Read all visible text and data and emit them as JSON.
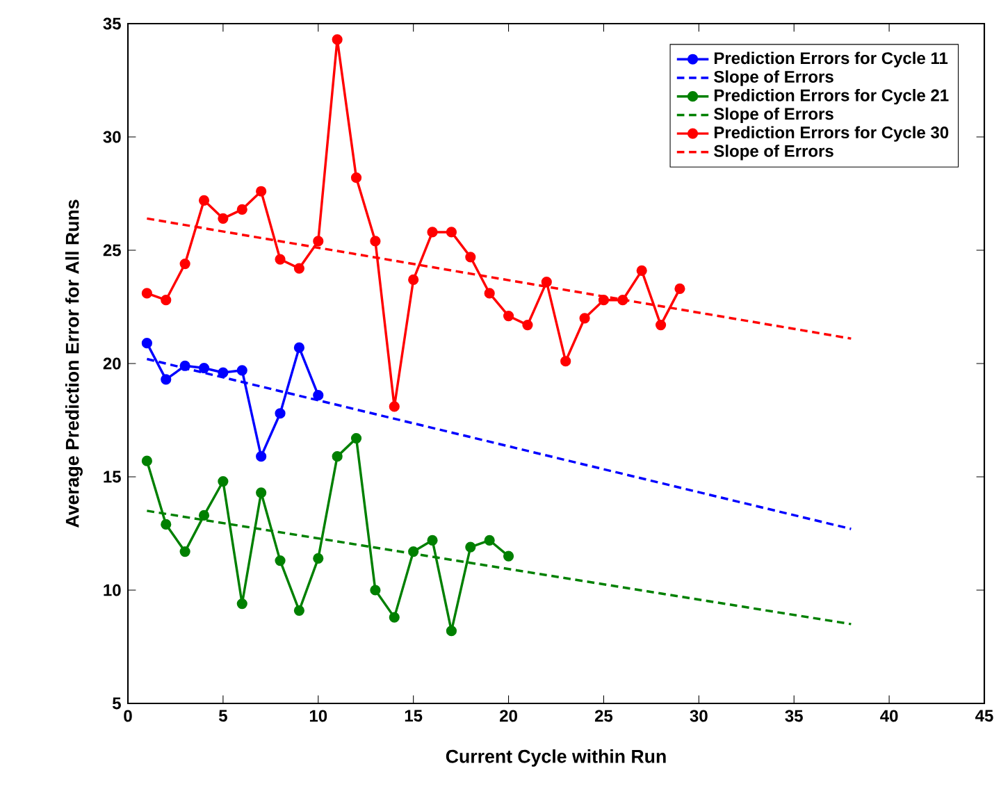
{
  "chart_data": {
    "type": "line",
    "xlabel": "Current Cycle within Run",
    "ylabel": "Average Prediction Error for All Runs",
    "xlim": [
      0,
      45
    ],
    "xticks": [
      0,
      5,
      10,
      15,
      20,
      25,
      30,
      35,
      40,
      45
    ],
    "ylim": [
      5,
      35
    ],
    "yticks": [
      5,
      10,
      15,
      20,
      25,
      30,
      35
    ],
    "grid": false,
    "legend": "top right",
    "series": [
      {
        "name": "Prediction Errors for Cycle 11",
        "color": "#0000ff",
        "marker": "circle",
        "line_style": "solid",
        "x": [
          1,
          2,
          3,
          4,
          5,
          6,
          7,
          8,
          9,
          10
        ],
        "values": [
          20.9,
          19.3,
          19.9,
          19.8,
          19.6,
          19.7,
          15.9,
          17.8,
          20.7,
          18.6
        ]
      },
      {
        "name": "Slope of Errors",
        "color": "#0000ff",
        "marker": "none",
        "line_style": "dashed",
        "x": [
          1,
          38
        ],
        "values": [
          20.2,
          12.7
        ]
      },
      {
        "name": "Prediction Errors for Cycle 21",
        "color": "#008000",
        "marker": "circle",
        "line_style": "solid",
        "x": [
          1,
          2,
          3,
          4,
          5,
          6,
          7,
          8,
          9,
          10,
          11,
          12,
          13,
          14,
          15,
          16,
          17,
          18,
          19,
          20
        ],
        "values": [
          15.7,
          12.9,
          11.7,
          13.3,
          14.8,
          9.4,
          14.3,
          11.3,
          9.1,
          11.4,
          15.9,
          16.7,
          10.0,
          8.8,
          11.7,
          12.2,
          8.2,
          11.9,
          12.2,
          11.5
        ]
      },
      {
        "name": "Slope of Errors",
        "color": "#008000",
        "marker": "none",
        "line_style": "dashed",
        "x": [
          1,
          38
        ],
        "values": [
          13.5,
          8.5
        ]
      },
      {
        "name": "Prediction Errors for Cycle 30",
        "color": "#ff0000",
        "marker": "circle",
        "line_style": "solid",
        "x": [
          1,
          2,
          3,
          4,
          5,
          6,
          7,
          8,
          9,
          10,
          11,
          12,
          13,
          14,
          15,
          16,
          17,
          18,
          19,
          20,
          21,
          22,
          23,
          24,
          25,
          26,
          27,
          28,
          29
        ],
        "values": [
          23.1,
          22.8,
          24.4,
          27.2,
          26.4,
          26.8,
          27.6,
          24.6,
          24.2,
          25.4,
          34.3,
          28.2,
          25.4,
          18.1,
          23.7,
          25.8,
          25.8,
          24.7,
          23.1,
          22.1,
          21.7,
          23.6,
          20.1,
          22.0,
          22.8,
          22.8,
          24.1,
          21.7,
          23.3
        ]
      },
      {
        "name": "Slope of Errors",
        "color": "#ff0000",
        "marker": "none",
        "line_style": "dashed",
        "x": [
          1,
          38
        ],
        "values": [
          26.4,
          21.1
        ]
      }
    ]
  }
}
